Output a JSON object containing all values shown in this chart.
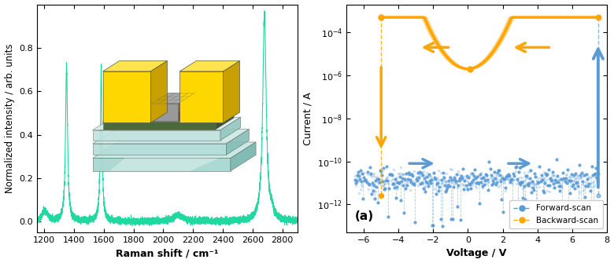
{
  "left_plot": {
    "xlabel": "Raman shift / cm⁻¹",
    "ylabel": "Normalized intensity / arb. units",
    "xlim": [
      1150,
      2900
    ],
    "ylim": [
      -0.05,
      1.0
    ],
    "line_color": "#20d9a0",
    "xticks": [
      1200,
      1400,
      1600,
      1800,
      2000,
      2200,
      2400,
      2600,
      2800
    ],
    "yticks": [
      0.0,
      0.2,
      0.4,
      0.6,
      0.8
    ]
  },
  "right_plot": {
    "xlabel": "Voltage / V",
    "ylabel": "Current / A",
    "xlim": [
      -7,
      8
    ],
    "orange_color": "#FFA500",
    "blue_color": "#5B9BD5",
    "label_a": "(a)",
    "legend_forward": "Forward-scan",
    "legend_backward": "Backward-scan",
    "xticks": [
      -6,
      -4,
      -2,
      0,
      2,
      4,
      6,
      8
    ]
  }
}
